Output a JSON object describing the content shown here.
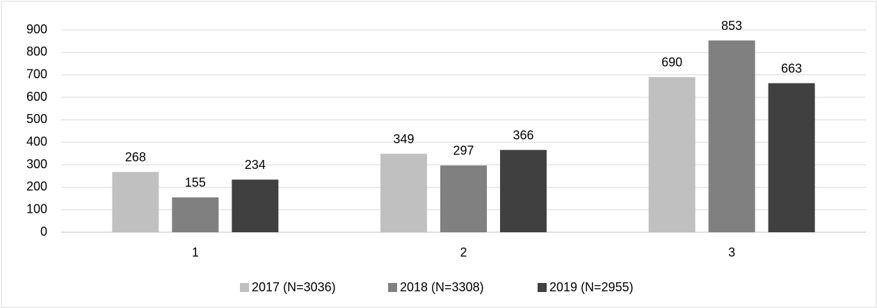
{
  "chart_data": {
    "type": "bar",
    "categories": [
      "1",
      "2",
      "3"
    ],
    "series": [
      {
        "name": "2017 (N=3036)",
        "color": "#c0c0c0",
        "values": [
          268,
          349,
          690
        ]
      },
      {
        "name": "2018 (N=3308)",
        "color": "#808080",
        "values": [
          155,
          297,
          853
        ]
      },
      {
        "name": "2019 (N=2955)",
        "color": "#404040",
        "values": [
          234,
          366,
          663
        ]
      }
    ],
    "ylim": [
      0,
      900
    ],
    "yticks": [
      0,
      100,
      200,
      300,
      400,
      500,
      600,
      700,
      800,
      900
    ],
    "grid": true,
    "legend": "bottom"
  }
}
